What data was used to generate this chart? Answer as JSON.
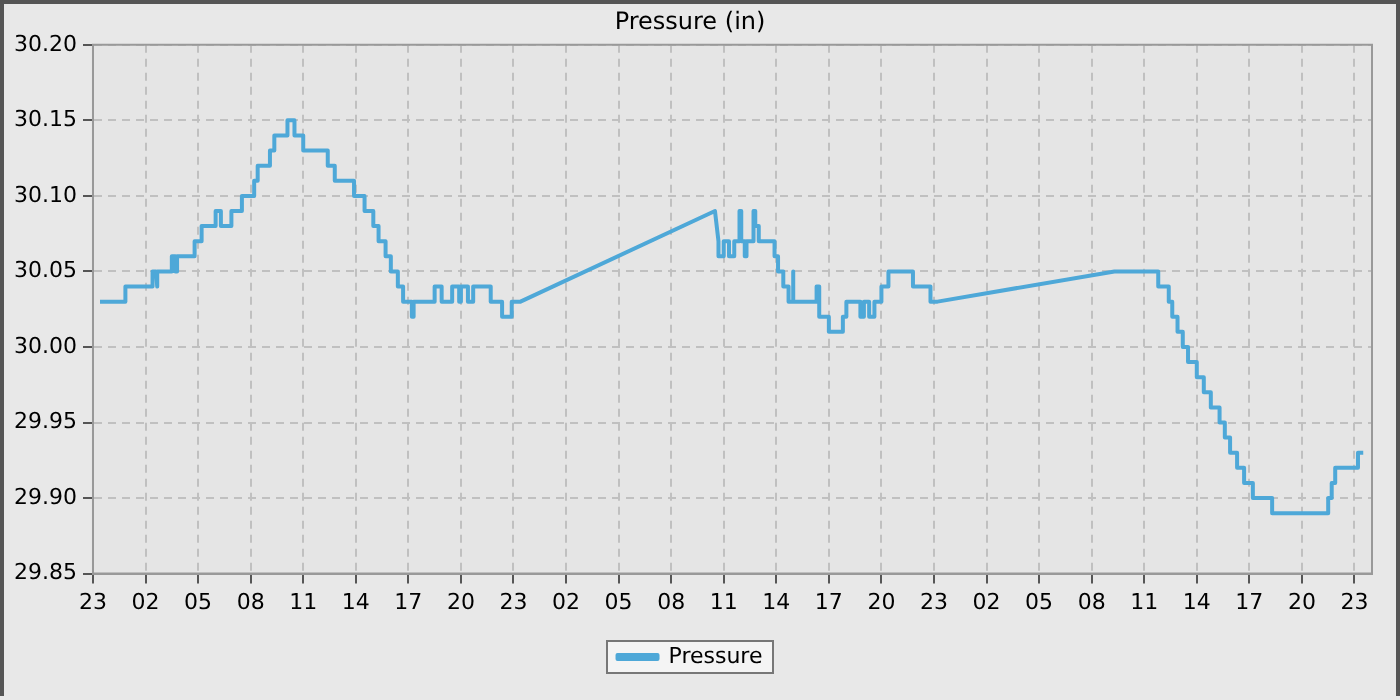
{
  "chart_data": {
    "type": "line",
    "title": "Pressure (in)",
    "xlim": [
      "--01-01T23:00",
      "--01-05T00:00"
    ],
    "xticks": [
      {
        "value": "--01-01T23:00",
        "label": "23"
      },
      {
        "value": "--01-02T02:00",
        "label": "02"
      },
      {
        "value": "--01-02T05:00",
        "label": "05"
      },
      {
        "value": "--01-02T08:00",
        "label": "08"
      },
      {
        "value": "--01-02T11:00",
        "label": "11"
      },
      {
        "value": "--01-02T14:00",
        "label": "14"
      },
      {
        "value": "--01-02T17:00",
        "label": "17"
      },
      {
        "value": "--01-02T20:00",
        "label": "20"
      },
      {
        "value": "--01-02T23:00",
        "label": "23"
      },
      {
        "value": "--01-03T02:00",
        "label": "02"
      },
      {
        "value": "--01-03T05:00",
        "label": "05"
      },
      {
        "value": "--01-03T08:00",
        "label": "08"
      },
      {
        "value": "--01-03T11:00",
        "label": "11"
      },
      {
        "value": "--01-03T14:00",
        "label": "14"
      },
      {
        "value": "--01-03T17:00",
        "label": "17"
      },
      {
        "value": "--01-03T20:00",
        "label": "20"
      },
      {
        "value": "--01-03T23:00",
        "label": "23"
      },
      {
        "value": "--01-04T02:00",
        "label": "02"
      },
      {
        "value": "--01-04T05:00",
        "label": "05"
      },
      {
        "value": "--01-04T08:00",
        "label": "08"
      },
      {
        "value": "--01-04T11:00",
        "label": "11"
      },
      {
        "value": "--01-04T14:00",
        "label": "14"
      },
      {
        "value": "--01-04T17:00",
        "label": "17"
      },
      {
        "value": "--01-04T20:00",
        "label": "20"
      },
      {
        "value": "--01-04T23:00",
        "label": "23"
      }
    ],
    "ylim": [
      29.85,
      30.2
    ],
    "yticks": [
      29.85,
      {
        "value": 29.9,
        "label": "29.90"
      },
      29.95,
      {
        "value": 30,
        "label": "30.00"
      },
      30.05,
      {
        "value": 30.1,
        "label": "30.10"
      },
      30.15,
      {
        "value": 30.2,
        "label": "30.20"
      }
    ],
    "grid": true,
    "legend": "bottom",
    "marker": "none",
    "line_style": "solid",
    "series": [
      {
        "name": "Pressure",
        "color": "#4ea8d8",
        "x": [
          "--01-01T23:24",
          "--01-02T00:51",
          "--01-02T00:51",
          "--01-02T02:24",
          "--01-02T02:24",
          "--01-02T02:36",
          "--01-02T02:36",
          "--01-02T02:42",
          "--01-02T02:42",
          "--01-02T03:30",
          "--01-02T03:30",
          "--01-02T03:42",
          "--01-02T03:42",
          "--01-02T03:48",
          "--01-02T03:48",
          "--01-02T04:48",
          "--01-02T04:48",
          "--01-02T05:12",
          "--01-02T05:12",
          "--01-02T06:00",
          "--01-02T06:00",
          "--01-02T06:18",
          "--01-02T06:18",
          "--01-02T06:54",
          "--01-02T06:54",
          "--01-02T07:30",
          "--01-02T07:30",
          "--01-02T08:12",
          "--01-02T08:12",
          "--01-02T08:24",
          "--01-02T08:24",
          "--01-02T09:06",
          "--01-02T09:06",
          "--01-02T09:21",
          "--01-02T09:21",
          "--01-02T10:06",
          "--01-02T10:06",
          "--01-02T10:30",
          "--01-02T10:30",
          "--01-02T11:00",
          "--01-02T11:00",
          "--01-02T11:24",
          "--01-02T11:24",
          "--01-02T12:24",
          "--01-02T12:24",
          "--01-02T12:48",
          "--01-02T12:48",
          "--01-02T13:54",
          "--01-02T13:54",
          "--01-02T14:30",
          "--01-02T14:30",
          "--01-02T15:00",
          "--01-02T15:00",
          "--01-02T15:18",
          "--01-02T15:18",
          "--01-02T15:42",
          "--01-02T15:42",
          "--01-02T16:00",
          "--01-02T16:00",
          "--01-02T16:24",
          "--01-02T16:24",
          "--01-02T16:42",
          "--01-02T16:42",
          "--01-02T17:12",
          "--01-02T17:12",
          "--01-02T17:18",
          "--01-02T17:18",
          "--01-02T18:30",
          "--01-02T18:30",
          "--01-02T18:54",
          "--01-02T18:54",
          "--01-02T19:30",
          "--01-02T19:30",
          "--01-02T19:54",
          "--01-02T19:54",
          "--01-02T20:00",
          "--01-02T20:00",
          "--01-02T20:24",
          "--01-02T20:24",
          "--01-02T20:42",
          "--01-02T20:42",
          "--01-02T21:42",
          "--01-02T21:42",
          "--01-02T22:21",
          "--01-02T22:21",
          "--01-02T22:54",
          "--01-02T22:54",
          "--01-02T23:24",
          "--01-03T10:30",
          "--01-03T10:42",
          "--01-03T10:42",
          "--01-03T11:00",
          "--01-03T11:00",
          "--01-03T11:18",
          "--01-03T11:18",
          "--01-03T11:36",
          "--01-03T11:36",
          "--01-03T11:54",
          "--01-03T11:54",
          "--01-03T12:00",
          "--01-03T12:00",
          "--01-03T12:12",
          "--01-03T12:12",
          "--01-03T12:18",
          "--01-03T12:18",
          "--01-03T12:42",
          "--01-03T12:42",
          "--01-03T12:48",
          "--01-03T12:48",
          "--01-03T13:00",
          "--01-03T13:00",
          "--01-03T13:54",
          "--01-03T13:54",
          "--01-03T14:06",
          "--01-03T14:06",
          "--01-03T14:24",
          "--01-03T14:24",
          "--01-03T14:42",
          "--01-03T14:42",
          "--01-03T14:54",
          "--01-03T14:54",
          "--01-03T15:00",
          "--01-03T15:00",
          "--01-03T16:18",
          "--01-03T16:18",
          "--01-03T16:27",
          "--01-03T16:27",
          "--01-03T17:00",
          "--01-03T17:00",
          "--01-03T17:48",
          "--01-03T17:48",
          "--01-03T18:00",
          "--01-03T18:00",
          "--01-03T18:48",
          "--01-03T18:48",
          "--01-03T19:00",
          "--01-03T19:00",
          "--01-03T19:18",
          "--01-03T19:18",
          "--01-03T19:36",
          "--01-03T19:36",
          "--01-03T20:00",
          "--01-03T20:00",
          "--01-03T20:24",
          "--01-03T20:24",
          "--01-03T20:54",
          "--01-03T20:54",
          "--01-03T21:48",
          "--01-03T21:48",
          "--01-03T22:48",
          "--01-03T22:48",
          "--01-03T23:12",
          "--01-04T09:18",
          "--01-04T11:48",
          "--01-04T11:48",
          "--01-04T12:24",
          "--01-04T12:24",
          "--01-04T12:36",
          "--01-04T12:36",
          "--01-04T12:54",
          "--01-04T12:54",
          "--01-04T13:12",
          "--01-04T13:12",
          "--01-04T13:30",
          "--01-04T13:30",
          "--01-04T14:00",
          "--01-04T14:00",
          "--01-04T14:24",
          "--01-04T14:24",
          "--01-04T14:48",
          "--01-04T14:48",
          "--01-04T15:18",
          "--01-04T15:18",
          "--01-04T15:36",
          "--01-04T15:36",
          "--01-04T15:54",
          "--01-04T15:54",
          "--01-04T16:18",
          "--01-04T16:18",
          "--01-04T16:42",
          "--01-04T16:42",
          "--01-04T17:12",
          "--01-04T17:12",
          "--01-04T18:18",
          "--01-04T18:18",
          "--01-04T21:30",
          "--01-04T21:30",
          "--01-04T21:42",
          "--01-04T21:42",
          "--01-04T21:54",
          "--01-04T21:54",
          "--01-04T23:12",
          "--01-04T23:12",
          "--01-04T23:30"
        ],
        "values": [
          30.03,
          30.03,
          30.04,
          30.04,
          30.05,
          30.05,
          30.04,
          30.04,
          30.05,
          30.05,
          30.06,
          30.06,
          30.05,
          30.05,
          30.06,
          30.06,
          30.07,
          30.07,
          30.08,
          30.08,
          30.09,
          30.09,
          30.08,
          30.08,
          30.09,
          30.09,
          30.1,
          30.1,
          30.11,
          30.11,
          30.12,
          30.12,
          30.13,
          30.13,
          30.14,
          30.14,
          30.15,
          30.15,
          30.14,
          30.14,
          30.13,
          30.13,
          30.13,
          30.13,
          30.12,
          30.12,
          30.11,
          30.11,
          30.1,
          30.1,
          30.09,
          30.09,
          30.08,
          30.08,
          30.07,
          30.07,
          30.06,
          30.06,
          30.05,
          30.05,
          30.04,
          30.04,
          30.03,
          30.03,
          30.02,
          30.02,
          30.03,
          30.03,
          30.04,
          30.04,
          30.03,
          30.03,
          30.04,
          30.04,
          30.03,
          30.03,
          30.04,
          30.04,
          30.03,
          30.03,
          30.04,
          30.04,
          30.03,
          30.03,
          30.02,
          30.02,
          30.03,
          30.03,
          30.09,
          30.07,
          30.06,
          30.06,
          30.07,
          30.07,
          30.06,
          30.06,
          30.07,
          30.07,
          30.09,
          30.09,
          30.07,
          30.07,
          30.06,
          30.06,
          30.07,
          30.07,
          30.09,
          30.09,
          30.08,
          30.08,
          30.07,
          30.07,
          30.06,
          30.06,
          30.05,
          30.05,
          30.04,
          30.04,
          30.03,
          30.03,
          30.05,
          30.05,
          30.03,
          30.03,
          30.04,
          30.04,
          30.02,
          30.02,
          30.01,
          30.01,
          30.02,
          30.02,
          30.03,
          30.03,
          30.02,
          30.02,
          30.03,
          30.03,
          30.02,
          30.02,
          30.03,
          30.03,
          30.04,
          30.04,
          30.05,
          30.05,
          30.05,
          30.05,
          30.04,
          30.04,
          30.03,
          30.03,
          30.05,
          30.05,
          30.04,
          30.04,
          30.03,
          30.03,
          30.02,
          30.02,
          30.01,
          30.01,
          30.0,
          30.0,
          29.99,
          29.99,
          29.98,
          29.98,
          29.97,
          29.97,
          29.96,
          29.96,
          29.95,
          29.95,
          29.94,
          29.94,
          29.93,
          29.93,
          29.92,
          29.92,
          29.91,
          29.91,
          29.9,
          29.9,
          29.89,
          29.89,
          29.9,
          29.9,
          29.91,
          29.91,
          29.92,
          29.92,
          29.93,
          29.93
        ]
      }
    ]
  }
}
